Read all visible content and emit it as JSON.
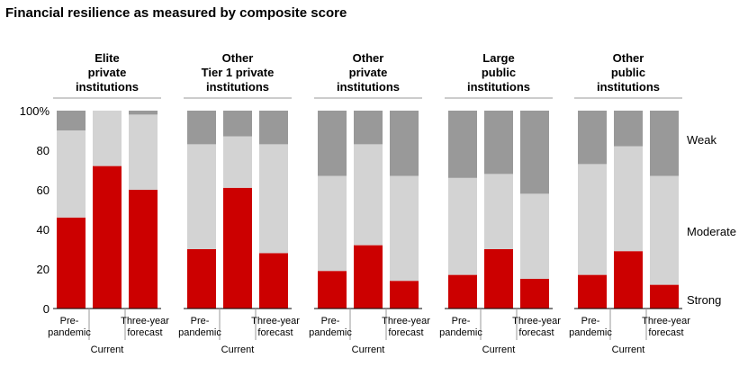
{
  "chart_data": {
    "type": "bar",
    "stacked": true,
    "title": "Financial resilience as measured by composite score",
    "y_ticks": [
      "100%",
      "80",
      "60",
      "40",
      "20",
      "0"
    ],
    "ylim": [
      0,
      100
    ],
    "series": [
      {
        "name": "Strong",
        "color": "#cc0000"
      },
      {
        "name": "Moderate",
        "color": "#d3d3d3"
      },
      {
        "name": "Weak",
        "color": "#999999"
      }
    ],
    "bar_labels": [
      "Pre-\npandemic",
      "Current",
      "Three-year\nforecast"
    ],
    "groups": [
      {
        "label": [
          "Elite",
          "private",
          "institutions"
        ],
        "bars": [
          {
            "strong": 46,
            "moderate": 44,
            "weak": 10
          },
          {
            "strong": 72,
            "moderate": 28,
            "weak": 0
          },
          {
            "strong": 60,
            "moderate": 38,
            "weak": 2
          }
        ]
      },
      {
        "label": [
          "Other",
          "Tier 1 private",
          "institutions"
        ],
        "bars": [
          {
            "strong": 30,
            "moderate": 53,
            "weak": 17
          },
          {
            "strong": 61,
            "moderate": 26,
            "weak": 13
          },
          {
            "strong": 28,
            "moderate": 55,
            "weak": 17
          }
        ]
      },
      {
        "label": [
          "Other",
          "private",
          "institutions"
        ],
        "bars": [
          {
            "strong": 19,
            "moderate": 48,
            "weak": 33
          },
          {
            "strong": 32,
            "moderate": 51,
            "weak": 17
          },
          {
            "strong": 14,
            "moderate": 53,
            "weak": 33
          }
        ]
      },
      {
        "label": [
          "Large",
          "public",
          "institutions"
        ],
        "bars": [
          {
            "strong": 17,
            "moderate": 49,
            "weak": 34
          },
          {
            "strong": 30,
            "moderate": 38,
            "weak": 32
          },
          {
            "strong": 15,
            "moderate": 43,
            "weak": 42
          }
        ]
      },
      {
        "label": [
          "Other",
          "public",
          "institutions"
        ],
        "bars": [
          {
            "strong": 17,
            "moderate": 56,
            "weak": 27
          },
          {
            "strong": 29,
            "moderate": 53,
            "weak": 18
          },
          {
            "strong": 12,
            "moderate": 55,
            "weak": 33
          }
        ]
      }
    ]
  }
}
